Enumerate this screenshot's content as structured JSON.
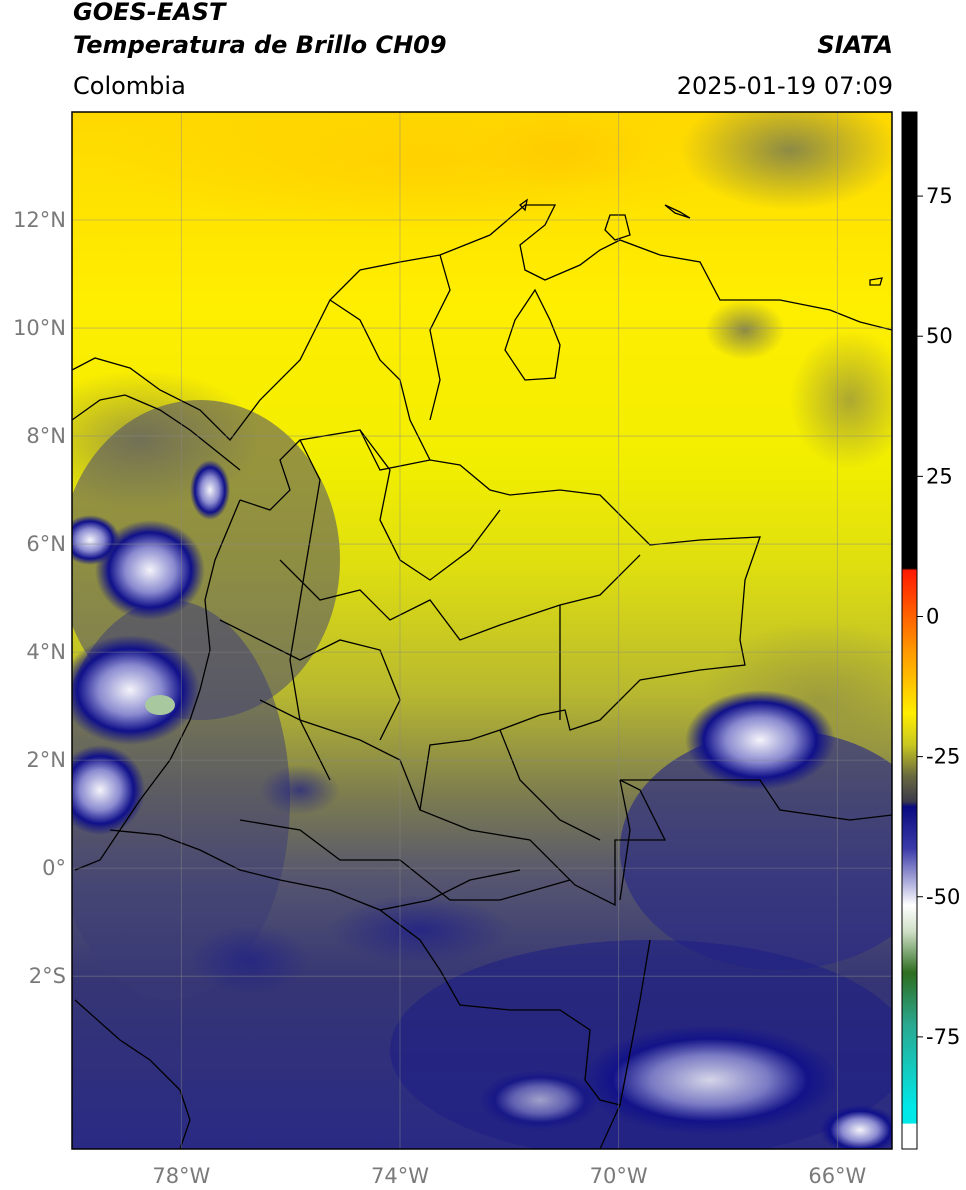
{
  "header": {
    "title": "GOES-EAST",
    "subtitle": "Temperatura de Brillo CH09",
    "brand": "SIATA",
    "region": "Colombia",
    "timestamp": "2025-01-19 07:09"
  },
  "map": {
    "extent": {
      "lon_min": -80,
      "lon_max": -65,
      "lat_min": -5.2,
      "lat_max": 14
    },
    "lat_ticks": [
      {
        "value": 12,
        "label": "12°N"
      },
      {
        "value": 10,
        "label": "10°N"
      },
      {
        "value": 8,
        "label": "8°N"
      },
      {
        "value": 6,
        "label": "6°N"
      },
      {
        "value": 4,
        "label": "4°N"
      },
      {
        "value": 2,
        "label": "2°N"
      },
      {
        "value": 0,
        "label": "0°"
      },
      {
        "value": -2,
        "label": "2°S"
      }
    ],
    "lon_ticks": [
      {
        "value": -78,
        "label": "78°W"
      },
      {
        "value": -74,
        "label": "74°W"
      },
      {
        "value": -70,
        "label": "70°W"
      },
      {
        "value": -66,
        "label": "66°W"
      }
    ],
    "gridlines": true
  },
  "colorbar": {
    "range": [
      -95,
      90
    ],
    "ticks": [
      {
        "value": 75,
        "label": "75"
      },
      {
        "value": 50,
        "label": "50"
      },
      {
        "value": 25,
        "label": "25"
      },
      {
        "value": 0,
        "label": "0"
      },
      {
        "value": -25,
        "label": "-25"
      },
      {
        "value": -50,
        "label": "-50"
      },
      {
        "value": -75,
        "label": "-75"
      }
    ],
    "colors": {
      "black": "#000000",
      "red": "#ff1a00",
      "orange": "#ff9900",
      "yellow": "#ffee00",
      "olive": "#8a8a30",
      "dark_gray": "#3a3a4a",
      "navy": "#0a0a80",
      "blue": "#3a3aa8",
      "light": "#e8e8f2",
      "white": "#ffffff",
      "green": "#2e6e20",
      "teal": "#2aa890",
      "cyan": "#00e8e8"
    }
  }
}
